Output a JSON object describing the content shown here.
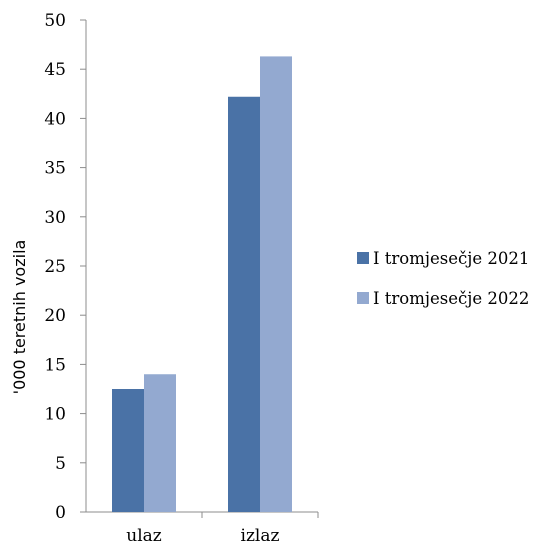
{
  "chart_data": {
    "type": "bar",
    "title": "",
    "xlabel": "",
    "ylabel": "'000 teretnih vozila",
    "categories": [
      "ulaz",
      "izlaz"
    ],
    "series": [
      {
        "name": "I tromjesečje 2021",
        "values": [
          12.5,
          42.2
        ],
        "color": "#4A72A6"
      },
      {
        "name": "I tromjesečje 2022",
        "values": [
          14.0,
          46.3
        ],
        "color": "#93A9D0"
      }
    ],
    "ylim": [
      0,
      50
    ],
    "yticks": [
      "0",
      "5",
      "10",
      "15",
      "20",
      "25",
      "30",
      "35",
      "40",
      "45",
      "50"
    ],
    "grid": false,
    "legend_position": "right"
  }
}
